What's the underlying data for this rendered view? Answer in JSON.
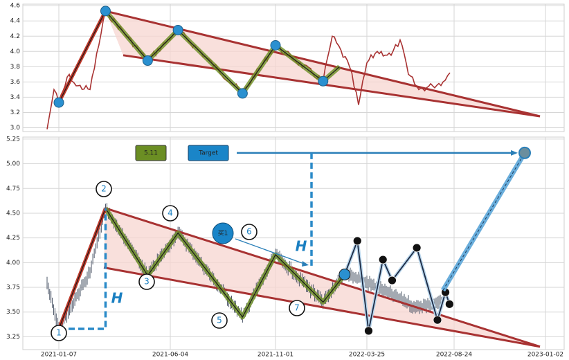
{
  "chart_data": [
    {
      "type": "line",
      "panel": "top",
      "ylim": [
        2.95,
        4.62
      ],
      "yticks": [
        "3.0",
        "3.2",
        "3.4",
        "3.6",
        "3.8",
        "4.0",
        "4.2",
        "4.4",
        "4.6"
      ],
      "ytick_values": [
        3.0,
        3.2,
        3.4,
        3.6,
        3.8,
        4.0,
        4.2,
        4.4,
        4.6
      ],
      "grid": true,
      "colors": {
        "price": "#a83232",
        "zigzag": "#6b8e23",
        "pattern": "#a83232",
        "pattern_fill": "#f7d6d0",
        "pivot": "#2a90d0"
      },
      "pivots": [
        {
          "date": "2021-01-07",
          "value": 3.33
        },
        {
          "date": "2021-03-10",
          "value": 4.53
        },
        {
          "date": "2021-05-05",
          "value": 3.88
        },
        {
          "date": "2021-06-15",
          "value": 4.28
        },
        {
          "date": "2021-09-15",
          "value": 3.45
        },
        {
          "date": "2021-11-01",
          "value": 4.08
        },
        {
          "date": "2022-01-15",
          "value": 3.61
        }
      ]
    },
    {
      "type": "line",
      "panel": "bottom",
      "ylim": [
        3.12,
        5.27
      ],
      "yticks": [
        "3.25",
        "3.50",
        "3.75",
        "4.00",
        "4.25",
        "4.50",
        "4.75",
        "5.00",
        "5.25"
      ],
      "ytick_values": [
        3.25,
        3.5,
        3.75,
        4.0,
        4.25,
        4.5,
        4.75,
        5.0,
        5.25
      ],
      "xticks": [
        "2021-01-07",
        "2021-06-04",
        "2021-11-01",
        "2022-03-25",
        "2022-08-24",
        "2023-01-02"
      ],
      "grid": true,
      "colors": {
        "zigzag": "#6b8e23",
        "pattern": "#a83232",
        "pattern_fill": "#f7d6d0",
        "forecast": "#1c2a44",
        "target": "#2a7fb8",
        "value_badge": "#6b8e23"
      },
      "wave_labels": [
        "1",
        "2",
        "3",
        "4",
        "5",
        "6",
        "7"
      ],
      "pivots": [
        {
          "label": "1",
          "date": "2021-01-07",
          "value": 3.33
        },
        {
          "label": "2",
          "date": "2021-03-10",
          "value": 4.55
        },
        {
          "label": "3",
          "date": "2021-05-05",
          "value": 3.87
        },
        {
          "label": "4",
          "date": "2021-06-15",
          "value": 4.3
        },
        {
          "label": "5",
          "date": "2021-09-15",
          "value": 3.45
        },
        {
          "label": "6",
          "date": "2021-11-01",
          "value": 4.08
        },
        {
          "label": "7",
          "date": "2022-01-15",
          "value": 3.6
        }
      ],
      "forecast_path": [
        {
          "date": "2022-02-18",
          "value": 3.88
        },
        {
          "date": "2022-03-10",
          "value": 4.22
        },
        {
          "date": "2022-03-28",
          "value": 3.31
        },
        {
          "date": "2022-04-22",
          "value": 4.03
        },
        {
          "date": "2022-05-08",
          "value": 3.82
        },
        {
          "date": "2022-06-20",
          "value": 4.15
        },
        {
          "date": "2022-07-26",
          "value": 3.42
        },
        {
          "date": "2022-08-09",
          "value": 3.7
        },
        {
          "date": "2022-08-16",
          "value": 3.58
        }
      ],
      "target_badge": "Target",
      "target_value": 5.11,
      "value_badge": "5.11",
      "h_label": "H",
      "buy_label": "买1"
    }
  ]
}
